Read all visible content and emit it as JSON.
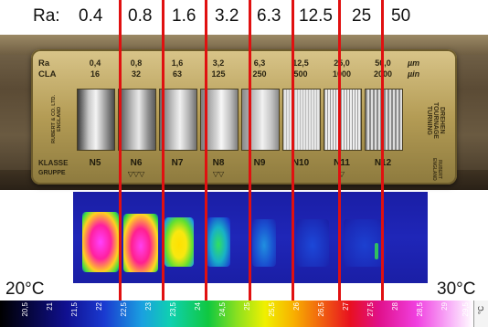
{
  "ra_heading": "Ra:",
  "ra_values": [
    "0.4",
    "0.8",
    "1.6",
    "3.2",
    "6.3",
    "12.5",
    "25",
    "50"
  ],
  "gauge": {
    "ra_label": "Ra",
    "cla_label": "CLA",
    "ra_row": [
      "0,4",
      "0,8",
      "1,6",
      "3,2",
      "6,3",
      "12,5",
      "25,0",
      "50,0"
    ],
    "cla_row": [
      "16",
      "32",
      "63",
      "125",
      "250",
      "500",
      "1000",
      "2000"
    ],
    "unit_um": "µm",
    "unit_uin": "µin",
    "maker": "RUBERT & CO. LTD. ENGLAND",
    "klasse_label": "KLASSE",
    "gruppe_label": "GRUPPE",
    "klasse_row": [
      "N5",
      "N6",
      "N7",
      "N8",
      "N9",
      "N10",
      "N11",
      "N12"
    ],
    "gruppe_marks": [
      "",
      "▽▽▽",
      "",
      "▽▽",
      "",
      "",
      "▽",
      ""
    ],
    "side_text": "DREHEN TOURNAGE TURNING",
    "corner_text": "RUBERT ENGLAND"
  },
  "temp_min": "20°C",
  "temp_max": "30°C",
  "scale_ticks": [
    "20,5",
    "21",
    "21,5",
    "22",
    "22,5",
    "23",
    "23,5",
    "24",
    "24,5",
    "25",
    "25,5",
    "26",
    "26,5",
    "27",
    "27,5",
    "28",
    "28,5",
    "29",
    "29,5"
  ],
  "scale_unit": "°C"
}
